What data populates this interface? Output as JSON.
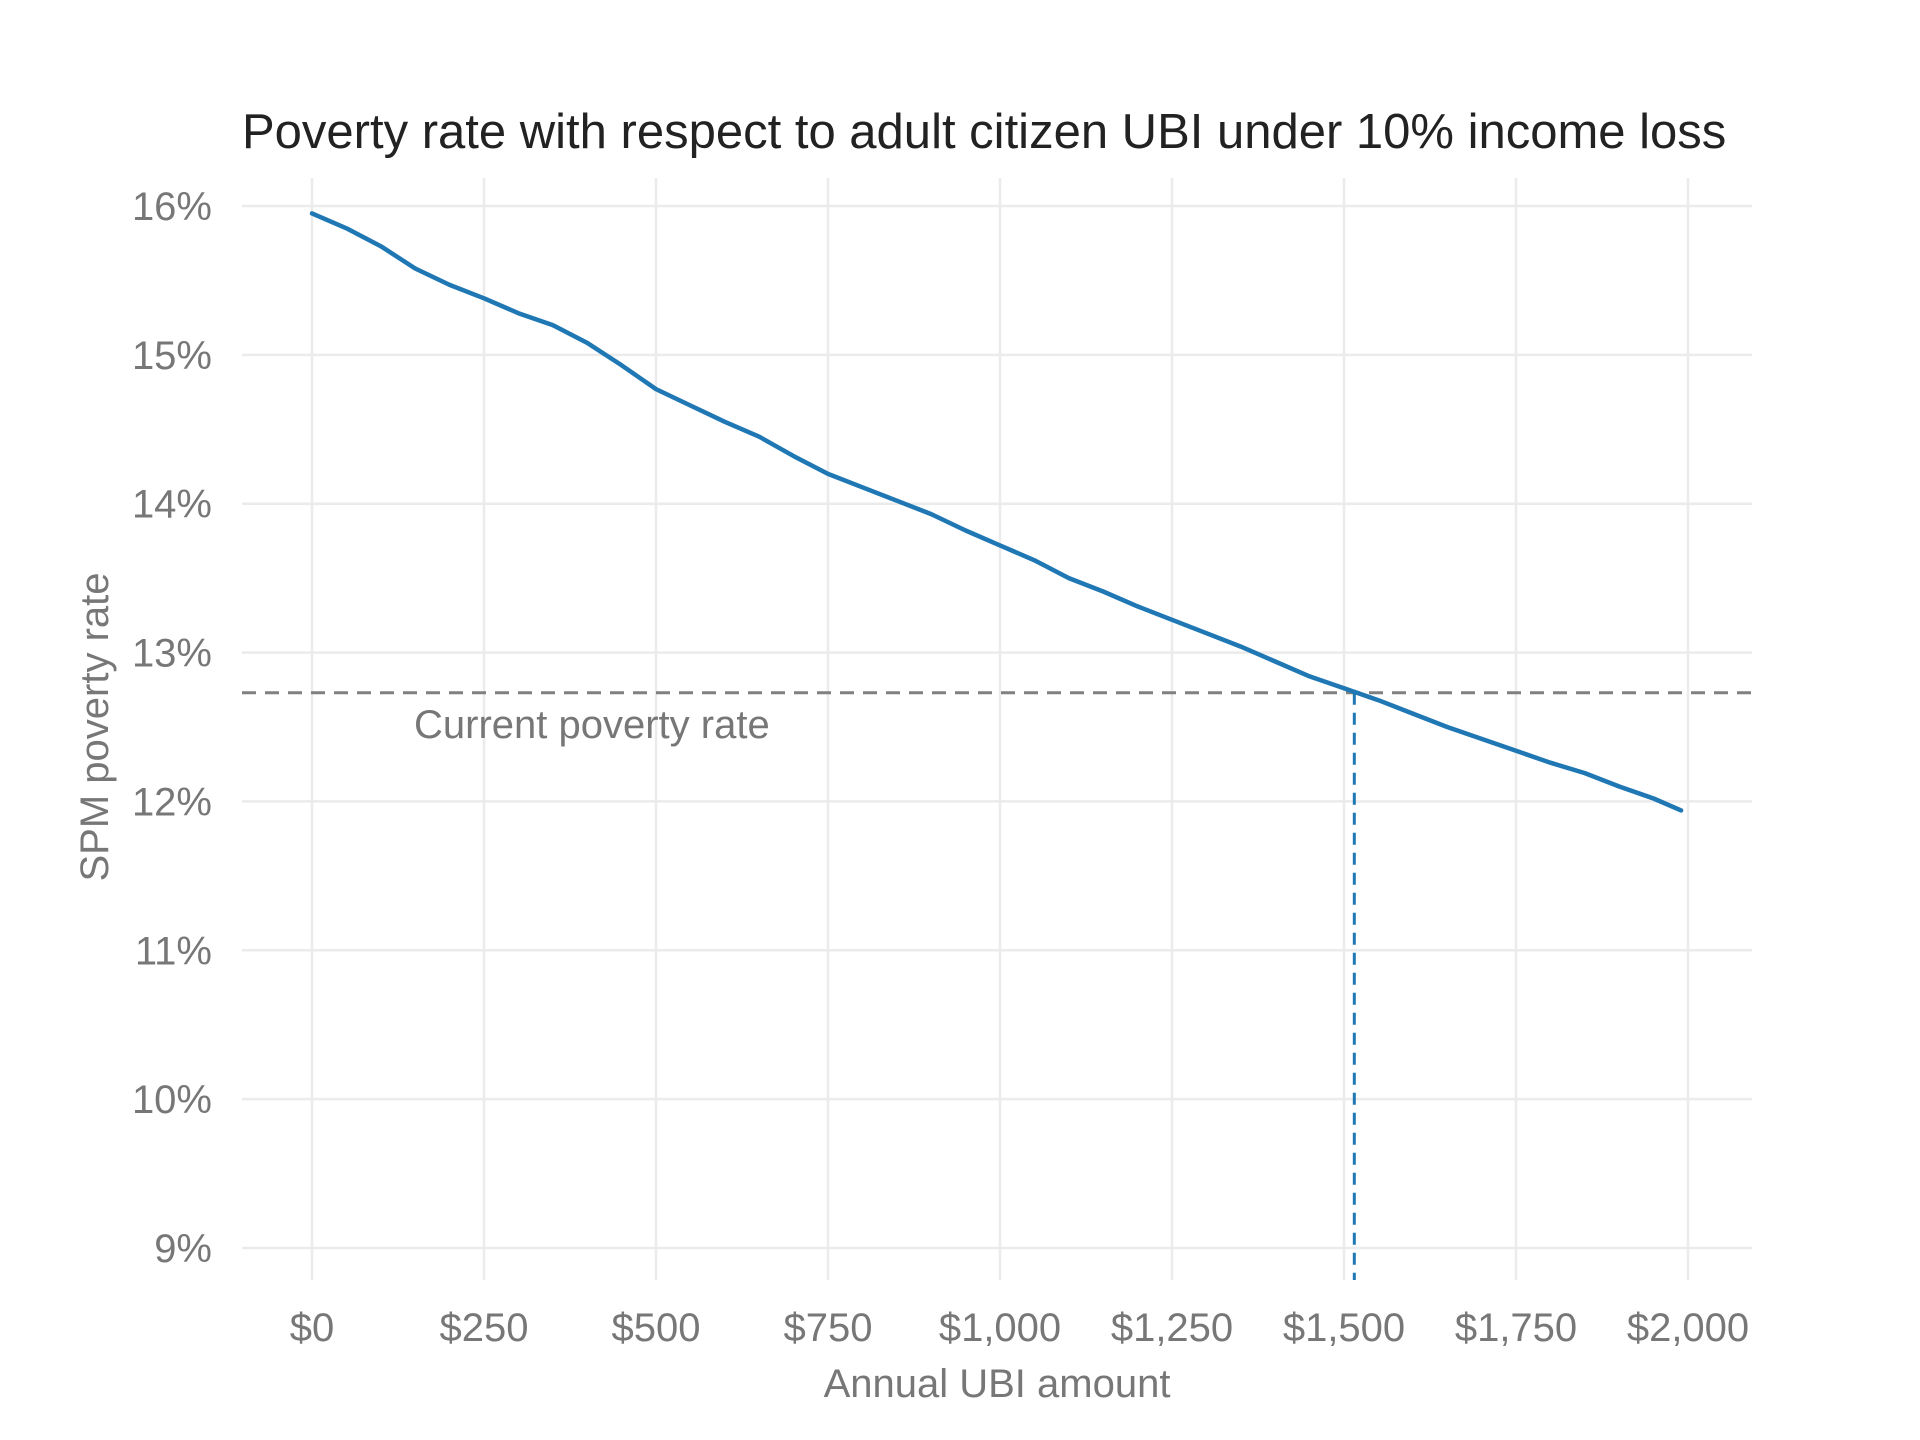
{
  "chart_data": {
    "type": "line",
    "title": "Poverty rate with respect to adult citizen UBI under 10% income loss",
    "xlabel": "Annual UBI amount",
    "ylabel": "SPM poverty rate",
    "xlim": [
      -100,
      2100
    ],
    "ylim": [
      8.8,
      16.2
    ],
    "x_ticks": [
      0,
      250,
      500,
      750,
      1000,
      1250,
      1500,
      1750,
      2000
    ],
    "x_tick_labels": [
      "$0",
      "$250",
      "$500",
      "$750",
      "$1,000",
      "$1,250",
      "$1,500",
      "$1,750",
      "$2,000"
    ],
    "y_ticks": [
      9,
      10,
      11,
      12,
      13,
      14,
      15,
      16
    ],
    "y_tick_labels": [
      "9%",
      "10%",
      "11%",
      "12%",
      "13%",
      "14%",
      "15%",
      "16%"
    ],
    "grid": true,
    "series": [
      {
        "color": "#1f77b4",
        "x": [
          0,
          50,
          100,
          150,
          200,
          250,
          300,
          350,
          400,
          450,
          500,
          550,
          600,
          650,
          700,
          750,
          800,
          850,
          900,
          950,
          1000,
          1050,
          1100,
          1150,
          1200,
          1250,
          1300,
          1350,
          1400,
          1450,
          1500,
          1550,
          1600,
          1650,
          1700,
          1750,
          1800,
          1850,
          1900,
          1950,
          1990
        ],
        "y": [
          15.95,
          15.85,
          15.73,
          15.58,
          15.47,
          15.38,
          15.28,
          15.2,
          15.08,
          14.93,
          14.77,
          14.66,
          14.55,
          14.45,
          14.32,
          14.2,
          14.11,
          14.02,
          13.93,
          13.82,
          13.72,
          13.62,
          13.5,
          13.41,
          13.31,
          13.22,
          13.13,
          13.04,
          12.94,
          12.84,
          12.76,
          12.68,
          12.59,
          12.5,
          12.42,
          12.34,
          12.26,
          12.19,
          12.1,
          12.02,
          11.94
        ]
      }
    ],
    "reference_lines": {
      "horizontal": {
        "y": 12.73,
        "color": "#808080",
        "style": "dashed",
        "label": "Current poverty rate"
      },
      "vertical": {
        "x": 1515,
        "color": "#1f77b4",
        "style": "dashed"
      }
    },
    "colors": {
      "line": "#1f77b4",
      "grid": "#ebebeb",
      "reference": "#808080",
      "title": "#222222",
      "text": "#777777"
    }
  }
}
